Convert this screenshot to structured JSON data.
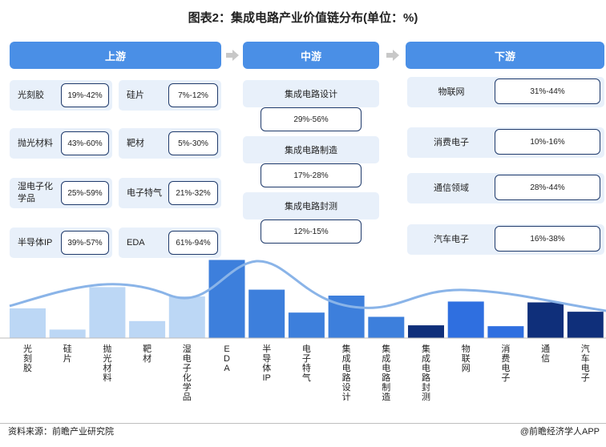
{
  "title": "图表2：集成电路产业价值链分布(单位：%)",
  "headers": {
    "up": "上游",
    "mid": "中游",
    "down": "下游"
  },
  "upstream": [
    {
      "name": "光刻胶",
      "value": "19%-42%"
    },
    {
      "name": "硅片",
      "value": "7%-12%"
    },
    {
      "name": "抛光材料",
      "value": "43%-60%"
    },
    {
      "name": "靶材",
      "value": "5%-30%"
    },
    {
      "name": "湿电子化学品",
      "value": "25%-59%"
    },
    {
      "name": "电子特气",
      "value": "21%-32%"
    },
    {
      "name": "半导体IP",
      "value": "39%-57%"
    },
    {
      "name": "EDA",
      "value": "61%-94%"
    }
  ],
  "midstream": [
    {
      "name": "集成电路设计",
      "value": "29%-56%"
    },
    {
      "name": "集成电路制造",
      "value": "17%-28%"
    },
    {
      "name": "集成电路封测",
      "value": "12%-15%"
    }
  ],
  "downstream": [
    {
      "name": "物联网",
      "value": "31%-44%"
    },
    {
      "name": "消费电子",
      "value": "10%-16%"
    },
    {
      "name": "通信领域",
      "value": "28%-44%"
    },
    {
      "name": "汽车电子",
      "value": "16%-38%"
    }
  ],
  "chart_data": {
    "type": "bar",
    "categories": [
      "光刻胶",
      "硅片",
      "抛光材料",
      "靶材",
      "湿电子化学品",
      "EDA",
      "半导体IP",
      "电子特气",
      "集成电路设计",
      "集成电路制造",
      "集成电路封测",
      "物联网",
      "消费电子",
      "通信",
      "汽车电子"
    ],
    "values": [
      35,
      10,
      60,
      20,
      49,
      92,
      57,
      30,
      50,
      25,
      15,
      43,
      14,
      42,
      31
    ],
    "ylim": [
      0,
      100
    ],
    "bar_colors": [
      "#bcd7f5",
      "#bcd7f5",
      "#bcd7f5",
      "#bcd7f5",
      "#bcd7f5",
      "#3d7fdc",
      "#3d7fdc",
      "#3d7fdc",
      "#3d7fdc",
      "#3d7fdc",
      "#0f2f7a",
      "#2f6fe0",
      "#2f6fe0",
      "#0f2f7a",
      "#0f2f7a"
    ],
    "curve_color": "#8ab4e8"
  },
  "source": "资料来源：前瞻产业研究院",
  "brand": "@前瞻经济学人APP"
}
